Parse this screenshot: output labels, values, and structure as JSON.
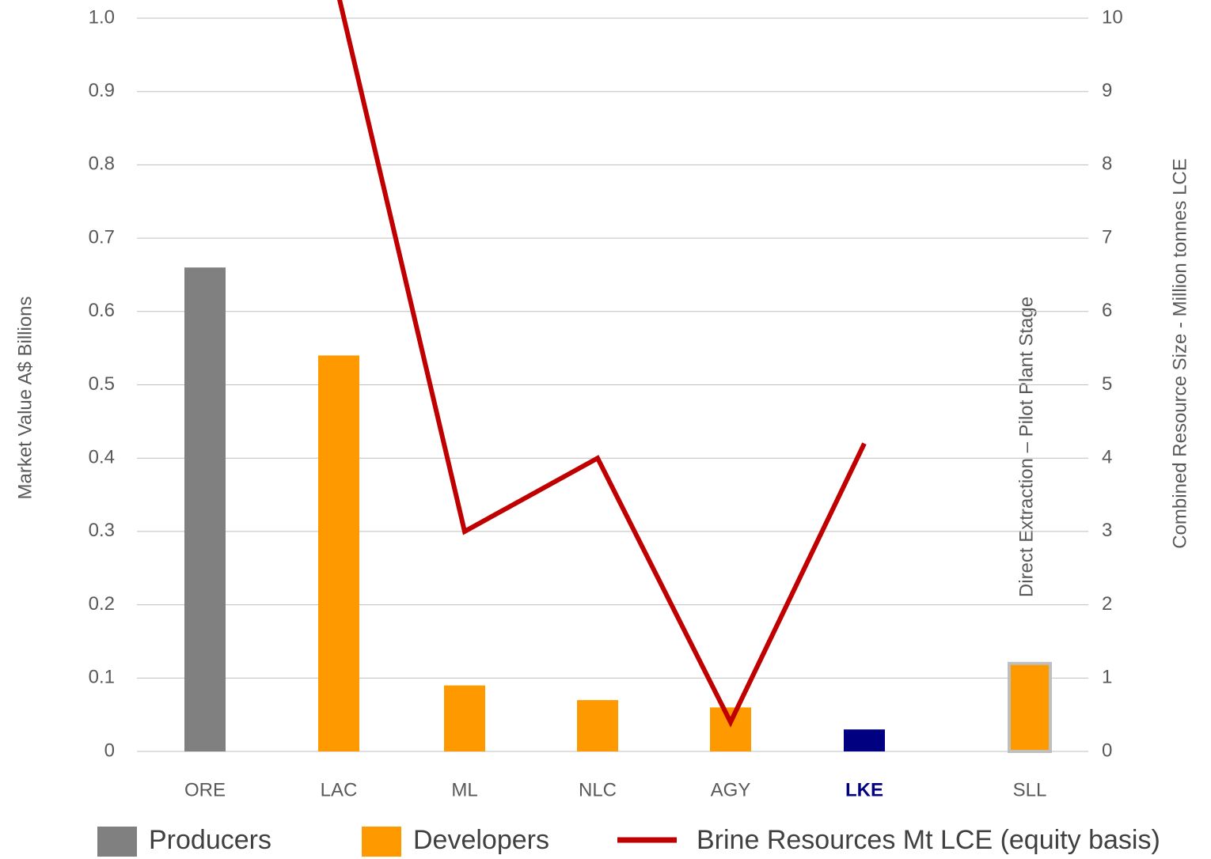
{
  "chart_data": {
    "type": "bar",
    "categories": [
      "ORE",
      "LAC",
      "ML",
      "NLC",
      "AGY",
      "LKE",
      "SLL"
    ],
    "highlight_category": 5,
    "highlight_color": "#000080",
    "bars": {
      "values": [
        0.66,
        0.54,
        0.09,
        0.07,
        0.06,
        0.03,
        0.12
      ],
      "colors": [
        "#808080",
        "#ff9900",
        "#ff9900",
        "#ff9900",
        "#ff9900",
        "#000080",
        "#ff9900"
      ],
      "edge_colors": [
        null,
        null,
        null,
        null,
        null,
        null,
        "#bfbfbf"
      ]
    },
    "series": [
      {
        "name": "Brine Resources Mt LCE (equity basis)",
        "color": "#c00000",
        "axis": "y2",
        "values": [
          null,
          10.3,
          3.0,
          4.0,
          0.4,
          4.2,
          null
        ]
      }
    ],
    "legend": [
      {
        "name": "Producers",
        "color": "#808080"
      },
      {
        "name": "Developers",
        "color": "#ff9900"
      }
    ],
    "ylabel": "Market Value A$ Billions",
    "y2label": "Combined Resource Size -  Million tonnes LCE",
    "annotation": "Direct Extraction – Pilot Plant Stage",
    "ylim": [
      0,
      1
    ],
    "yticks": [
      0,
      0.1,
      0.2,
      0.3,
      0.4,
      0.5,
      0.6,
      0.7,
      0.8,
      0.9,
      {
        "value": 1,
        "label": "1.0"
      }
    ],
    "y2lim": [
      0,
      10
    ],
    "y2ticks": [
      0,
      1,
      2,
      3,
      4,
      5,
      6,
      7,
      8,
      9,
      10
    ],
    "grid": true
  }
}
